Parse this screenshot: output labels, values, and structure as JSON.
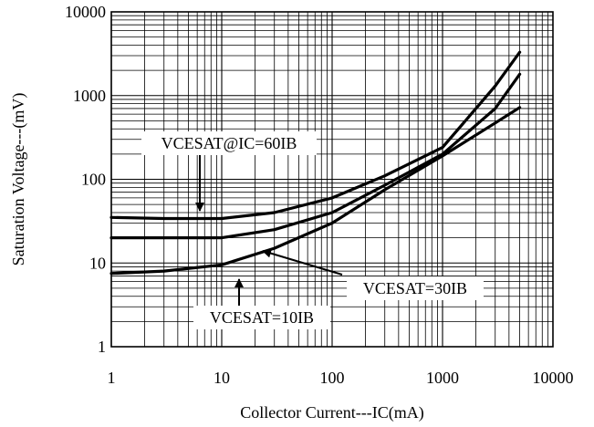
{
  "chart_data": {
    "type": "line",
    "xlabel": "Collector Current---IC(mA)",
    "ylabel": "Saturation Voltage---(mV)",
    "xscale": "log",
    "yscale": "log",
    "xlim": [
      1,
      10000
    ],
    "ylim": [
      1,
      10000
    ],
    "x_ticks": [
      "1",
      "10",
      "100",
      "1000",
      "10000"
    ],
    "y_ticks": [
      "1",
      "10",
      "100",
      "1000",
      "10000"
    ],
    "grid": true,
    "series": [
      {
        "name": "VCESAT@IC=60IB",
        "x": [
          1,
          3,
          10,
          30,
          100,
          300,
          1000,
          3000,
          5000
        ],
        "y": [
          35,
          34,
          34,
          40,
          60,
          110,
          240,
          1300,
          3300
        ]
      },
      {
        "name": "VCESAT=30IB",
        "x": [
          1,
          3,
          10,
          30,
          100,
          300,
          1000,
          3000,
          5000
        ],
        "y": [
          20,
          20,
          20,
          25,
          40,
          85,
          200,
          700,
          1800
        ]
      },
      {
        "name": "VCESAT=10IB",
        "x": [
          1,
          3,
          10,
          30,
          100,
          300,
          1000,
          3000,
          5000
        ],
        "y": [
          7.5,
          8,
          9.5,
          15,
          30,
          75,
          190,
          470,
          720
        ]
      }
    ],
    "annotations": [
      {
        "text": "VCESAT@IC=60IB",
        "points_to": "VCESAT@IC=60IB"
      },
      {
        "text": "VCESAT=30IB",
        "points_to": "VCESAT=30IB"
      },
      {
        "text": "VCESAT=10IB",
        "points_to": "VCESAT=10IB"
      }
    ]
  }
}
